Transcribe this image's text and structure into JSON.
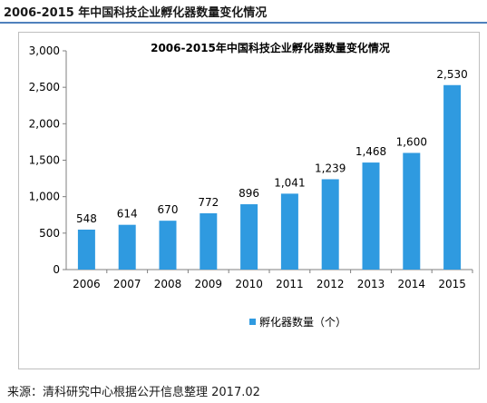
{
  "page": {
    "title": "2006-2015 年中国科技企业孵化器数量变化情况",
    "source": "来源：清科研究中心根据公开信息整理   2017.02"
  },
  "chart_data": {
    "type": "bar",
    "title": "2006-2015年中国科技企业孵化器数量变化情况",
    "categories": [
      "2006",
      "2007",
      "2008",
      "2009",
      "2010",
      "2011",
      "2012",
      "2013",
      "2014",
      "2015"
    ],
    "series": [
      {
        "name": "孵化器数量（个）",
        "values": [
          548,
          614,
          670,
          772,
          896,
          1041,
          1239,
          1468,
          1600,
          2530
        ],
        "labels": [
          "548",
          "614",
          "670",
          "772",
          "896",
          "1,041",
          "1,239",
          "1,468",
          "1,600",
          "2,530"
        ],
        "color": "#2f9ae0"
      }
    ],
    "ylim": [
      0,
      3000
    ],
    "yticks": [
      0,
      500,
      1000,
      1500,
      2000,
      2500,
      3000
    ],
    "ytick_labels": [
      "0",
      "500",
      "1,000",
      "1,500",
      "2,000",
      "2,500",
      "3,000"
    ],
    "xlabel": "",
    "ylabel": "",
    "grid": false,
    "legend_position": "bottom"
  }
}
